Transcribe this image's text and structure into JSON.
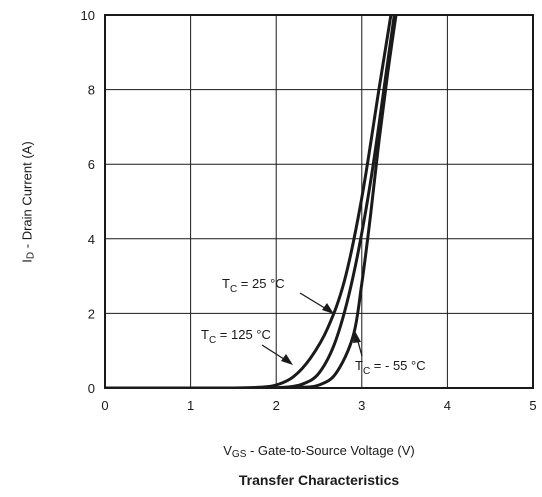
{
  "chart_data": {
    "type": "line",
    "title": "Transfer Characteristics",
    "xlabel": {
      "main": "V",
      "sub": "GS",
      "rest": " - Gate-to-Source Voltage (V)"
    },
    "ylabel": {
      "main": "I",
      "sub": "D",
      "rest": " - Drain Current (A)"
    },
    "xlim": [
      0,
      5
    ],
    "ylim": [
      0,
      10
    ],
    "xticks": [
      0,
      1,
      2,
      3,
      4,
      5
    ],
    "yticks": [
      0,
      2,
      4,
      6,
      8,
      10
    ],
    "grid": true,
    "series": [
      {
        "name": "T_C = 125 °C",
        "label_main": "T",
        "label_sub": "C",
        "label_rest": " = 125 °C",
        "x": [
          0.0,
          1.0,
          1.5,
          1.8,
          2.0,
          2.2,
          2.4,
          2.6,
          2.8,
          3.0,
          3.2,
          3.34
        ],
        "y": [
          0.0,
          0.0,
          0.0,
          0.02,
          0.08,
          0.3,
          0.8,
          1.6,
          2.9,
          5.1,
          8.0,
          10.0
        ]
      },
      {
        "name": "T_C = 25 °C",
        "label_main": "T",
        "label_sub": "C",
        "label_rest": " = 25 °C",
        "x": [
          0.0,
          1.0,
          1.8,
          2.1,
          2.3,
          2.5,
          2.7,
          2.9,
          3.1,
          3.3,
          3.38
        ],
        "y": [
          0.0,
          0.0,
          0.0,
          0.02,
          0.1,
          0.4,
          1.3,
          3.0,
          5.5,
          8.7,
          10.0
        ]
      },
      {
        "name": "T_C = - 55 °C",
        "label_main": "T",
        "label_sub": "C",
        "label_rest": " = - 55 °C",
        "x": [
          0.0,
          1.0,
          2.0,
          2.3,
          2.5,
          2.7,
          2.9,
          3.0,
          3.1,
          3.2,
          3.3,
          3.4
        ],
        "y": [
          0.0,
          0.0,
          0.0,
          0.02,
          0.08,
          0.4,
          1.4,
          2.8,
          4.6,
          6.6,
          8.4,
          10.0
        ]
      }
    ]
  }
}
